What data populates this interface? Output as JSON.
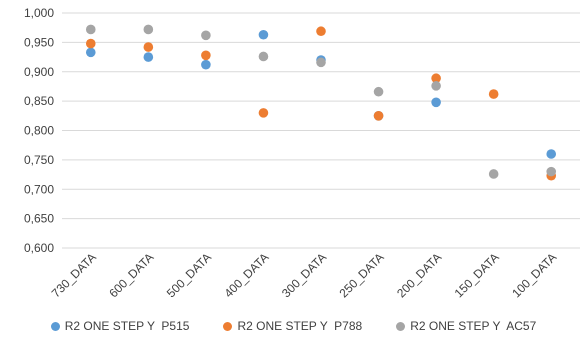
{
  "chart_data": {
    "type": "scatter",
    "title": "",
    "xlabel": "",
    "ylabel": "",
    "categories": [
      "730_DATA",
      "600_DATA",
      "500_DATA",
      "400_DATA",
      "300_DATA",
      "250_DATA",
      "200_DATA",
      "150_DATA",
      "100_DATA"
    ],
    "ylim": [
      0.6,
      1.0
    ],
    "yticks": [
      "1,000",
      "0,950",
      "0,900",
      "0,850",
      "0,800",
      "0,750",
      "0,700",
      "0,650",
      "0,600"
    ],
    "ytick_values": [
      1.0,
      0.95,
      0.9,
      0.85,
      0.8,
      0.75,
      0.7,
      0.65,
      0.6
    ],
    "grid": true,
    "legend_position": "bottom",
    "series": [
      {
        "name": "R2 ONE STEP Y  P515",
        "color": "#5B9BD5",
        "values": [
          0.933,
          0.925,
          0.912,
          0.963,
          0.92,
          0.825,
          0.848,
          null,
          0.76
        ]
      },
      {
        "name": "R2 ONE STEP Y  P788",
        "color": "#ED7D31",
        "values": [
          0.948,
          0.942,
          0.928,
          0.83,
          0.969,
          0.825,
          0.889,
          0.862,
          0.723
        ]
      },
      {
        "name": "R2 ONE STEP Y  AC57",
        "color": "#A5A5A5",
        "values": [
          0.972,
          0.972,
          0.962,
          0.926,
          0.916,
          0.866,
          0.876,
          0.726,
          0.73
        ]
      }
    ]
  }
}
